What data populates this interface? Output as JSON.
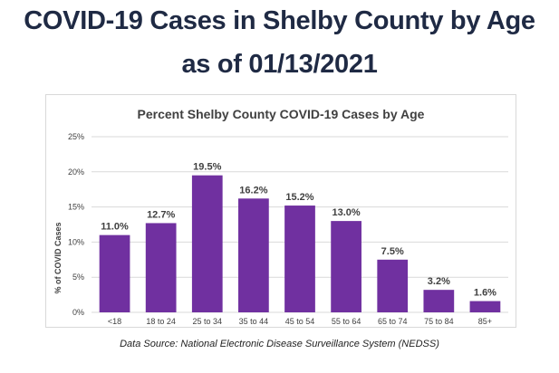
{
  "heading": {
    "line1": "COVID-19 Cases in Shelby County by Age",
    "line2": "as of 01/13/2021"
  },
  "source_note": "Data Source: National Electronic Disease Surveillance System (NEDSS)",
  "colors": {
    "bar": "#7030a0",
    "title": "#1f2a44",
    "grid": "#d9d9d9"
  },
  "chart_data": {
    "type": "bar",
    "title": "Percent Shelby County COVID-19 Cases by Age",
    "xlabel": "",
    "ylabel": "% of COVID Cases",
    "ylim": [
      0,
      25
    ],
    "yticks": [
      "0%",
      "5%",
      "10%",
      "15%",
      "20%",
      "25%"
    ],
    "grid": true,
    "categories": [
      "<18",
      "18 to 24",
      "25 to 34",
      "35 to 44",
      "45 to 54",
      "55 to 64",
      "65 to 74",
      "75 to 84",
      "85+"
    ],
    "values": [
      11.0,
      12.7,
      19.5,
      16.2,
      15.2,
      13.0,
      7.5,
      3.2,
      1.6
    ],
    "data_labels": [
      "11.0%",
      "12.7%",
      "19.5%",
      "16.2%",
      "15.2%",
      "13.0%",
      "7.5%",
      "3.2%",
      "1.6%"
    ]
  }
}
